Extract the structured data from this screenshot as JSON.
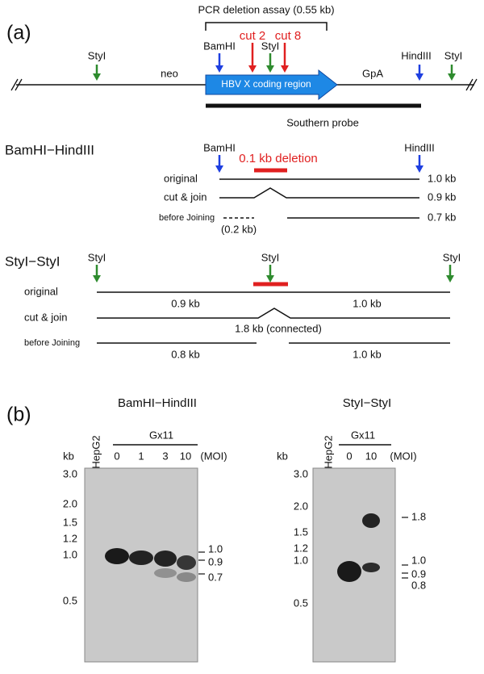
{
  "panel_a": {
    "label": "(a)",
    "pcr_assay": "PCR deletion assay (0.55 kb)",
    "map": {
      "styi_left": "StyI",
      "neo": "neo",
      "bamhi": "BamHI",
      "cut2": "cut 2",
      "styi_mid": "StyI",
      "cut8": "cut 8",
      "coding_region": "HBV X coding region",
      "gpa": "GpA",
      "hindiii": "HindIII",
      "styi_right": "StyI",
      "probe": "Southern probe"
    },
    "bamhi_hindiii": {
      "title": "BamHI−HindIII",
      "bamhi": "BamHI",
      "deletion": "0.1 kb deletion",
      "hindiii": "HindIII",
      "rows": [
        {
          "label": "original",
          "size": "1.0 kb"
        },
        {
          "label": "cut & join",
          "size": "0.9 kb"
        },
        {
          "label": "before Joining",
          "fragment": "(0.2 kb)",
          "size": "0.7 kb"
        }
      ]
    },
    "styi_styi": {
      "title": "StyI−StyI",
      "sites": [
        "StyI",
        "StyI",
        "StyI"
      ],
      "rows": [
        {
          "label": "original",
          "sizes": [
            "0.9 kb",
            "1.0 kb"
          ]
        },
        {
          "label": "cut & join",
          "sizes": [
            "1.8 kb (connected)"
          ]
        },
        {
          "label": "before Joining",
          "sizes": [
            "0.8 kb",
            "1.0 kb"
          ]
        }
      ]
    }
  },
  "panel_b": {
    "label": "(b)",
    "gels": [
      {
        "title": "BamHI−HindIII",
        "control": "HepG2",
        "group": "Gx11",
        "lanes": [
          "0",
          "1",
          "3",
          "10"
        ],
        "unit": "(MOI)",
        "axis_unit": "kb",
        "markers": [
          "3.0",
          "2.0",
          "1.5",
          "1.2",
          "1.0",
          "0.5"
        ],
        "bands": [
          "1.0",
          "0.9",
          "0.7"
        ]
      },
      {
        "title": "StyI−StyI",
        "control": "HepG2",
        "group": "Gx11",
        "lanes": [
          "0",
          "10"
        ],
        "unit": "(MOI)",
        "axis_unit": "kb",
        "markers": [
          "3.0",
          "2.0",
          "1.5",
          "1.2",
          "1.0",
          "0.5"
        ],
        "bands": [
          "1.8",
          "1.0",
          "0.9",
          "0.8"
        ]
      }
    ]
  }
}
